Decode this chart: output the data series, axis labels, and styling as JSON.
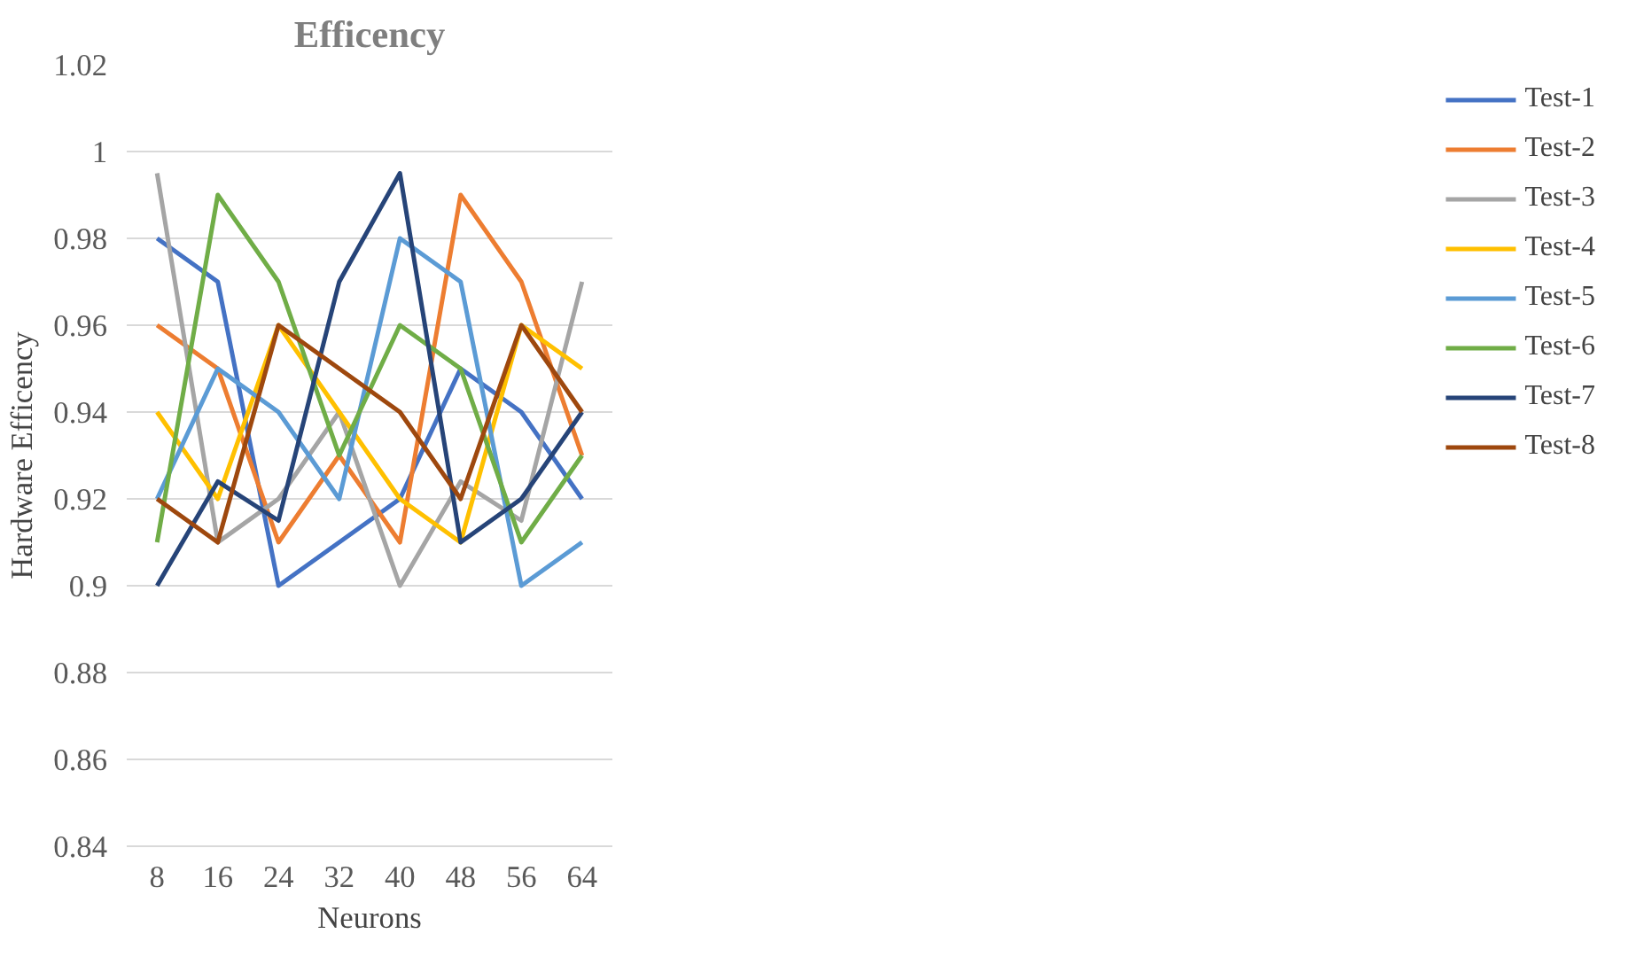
{
  "chart_data": {
    "type": "line",
    "title": "Efficency",
    "xlabel": "Neurons",
    "ylabel": "Hardware Efficency",
    "categories": [
      "8",
      "16",
      "24",
      "32",
      "40",
      "48",
      "56",
      "64"
    ],
    "ylim": [
      0.84,
      1.02
    ],
    "yticks": [
      0.84,
      0.86,
      0.88,
      0.9,
      0.92,
      0.94,
      0.96,
      0.98,
      1,
      1.02
    ],
    "grid": "y",
    "legend": "right",
    "marker": "none",
    "line_style": "solid",
    "series": [
      {
        "name": "Test-1",
        "color": "#4472c4",
        "values": [
          0.98,
          0.97,
          0.9,
          0.91,
          0.92,
          0.95,
          0.94,
          0.92
        ]
      },
      {
        "name": "Test-2",
        "color": "#ed7d31",
        "values": [
          0.96,
          0.95,
          0.91,
          0.93,
          0.91,
          0.99,
          0.97,
          0.93
        ]
      },
      {
        "name": "Test-3",
        "color": "#a5a5a5",
        "values": [
          0.995,
          0.91,
          0.92,
          0.94,
          0.9,
          0.924,
          0.915,
          0.97
        ]
      },
      {
        "name": "Test-4",
        "color": "#ffc000",
        "values": [
          0.94,
          0.92,
          0.96,
          0.94,
          0.92,
          0.91,
          0.96,
          0.95
        ]
      },
      {
        "name": "Test-5",
        "color": "#5b9bd5",
        "values": [
          0.92,
          0.95,
          0.94,
          0.92,
          0.98,
          0.97,
          0.9,
          0.91
        ]
      },
      {
        "name": "Test-6",
        "color": "#70ad47",
        "values": [
          0.91,
          0.99,
          0.97,
          0.93,
          0.96,
          0.95,
          0.91,
          0.93
        ]
      },
      {
        "name": "Test-7",
        "color": "#264478",
        "values": [
          0.9,
          0.924,
          0.915,
          0.97,
          0.995,
          0.91,
          0.92,
          0.94
        ]
      },
      {
        "name": "Test-8",
        "color": "#9e480e",
        "values": [
          0.92,
          0.91,
          0.96,
          0.95,
          0.94,
          0.92,
          0.96,
          0.94
        ]
      }
    ]
  }
}
